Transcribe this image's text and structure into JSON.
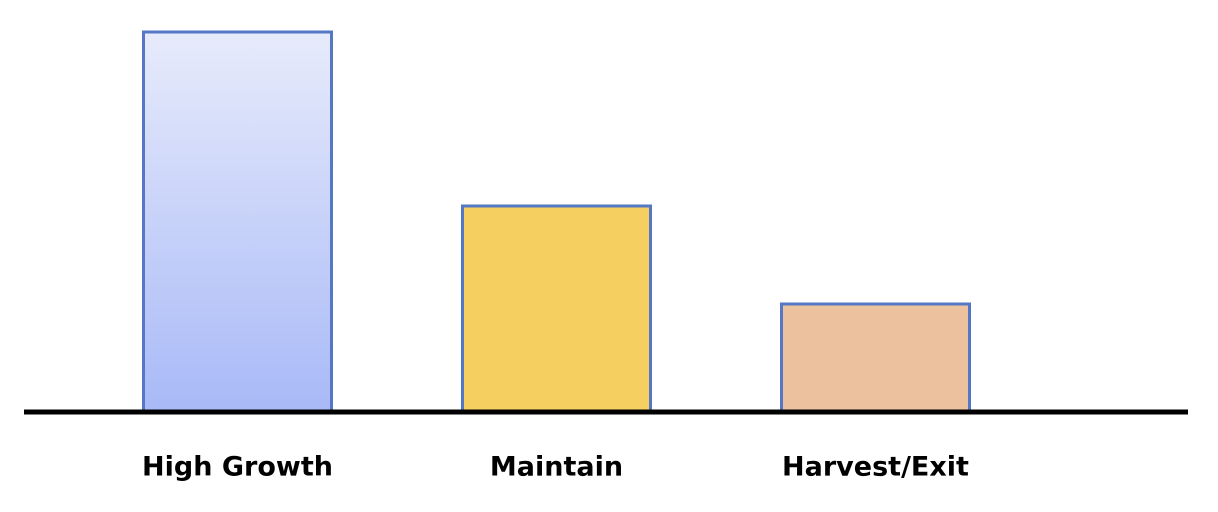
{
  "chart_data": {
    "type": "bar",
    "categories": [
      "High Growth",
      "Maintain",
      "Harvest/Exit"
    ],
    "values": [
      95,
      51.5,
      27
    ],
    "colors": [
      [
        "#e7ebfb",
        "#a8b9f7"
      ],
      "#f6cf61",
      "#ebc19e"
    ],
    "edge_color": "#5577c4",
    "ylim": [
      0,
      100
    ]
  }
}
